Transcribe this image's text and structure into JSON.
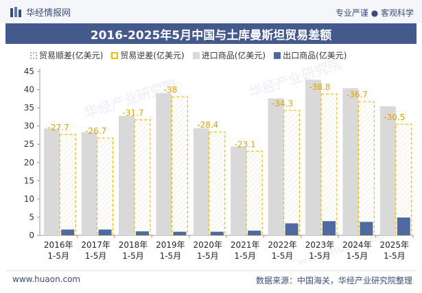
{
  "header": {
    "brand_name": "华经情报网",
    "tagline": "专业严谨 ● 客观科学"
  },
  "footer": {
    "website": "www.huaon.com",
    "source": "数据来源：中国海关，华经产业研究院整理"
  },
  "watermarks": [
    "华经产业研究院",
    "华经产业研究院",
    "www.huaon.com"
  ],
  "colors": {
    "title_band": "#44598c",
    "import": "#d9d9d9",
    "export": "#4f6aa0",
    "deficit_border": "#f5b700",
    "surplus_border": "#9aa9cc"
  },
  "chart_data": {
    "type": "bar",
    "title": "2016-2025年5月中国与土库曼斯坦贸易差额",
    "legend_position": "top",
    "categories": [
      "2016年\n1-5月",
      "2017年\n1-5月",
      "2018年\n1-5月",
      "2019年\n1-5月",
      "2020年\n1-5月",
      "2021年\n1-5月",
      "2022年\n1-5月",
      "2023年\n1-5月",
      "2024年\n1-5月",
      "2025年\n1-5月"
    ],
    "ylim": [
      0,
      45
    ],
    "yticks": [
      0,
      5,
      10,
      15,
      20,
      25,
      30,
      35,
      40,
      45
    ],
    "grid": false,
    "series": [
      {
        "name": "贸易顺差(亿美元)",
        "values": [
          null,
          null,
          null,
          null,
          null,
          null,
          null,
          null,
          null,
          null
        ]
      },
      {
        "name": "贸易逆差(亿美元)",
        "values": [
          -27.7,
          -26.7,
          -31.7,
          -38,
          -28.4,
          -23.1,
          -34.3,
          -38.8,
          -36.7,
          -30.5
        ]
      },
      {
        "name": "进口商品(亿美元)",
        "values": [
          29.3,
          28.3,
          32.8,
          39.0,
          29.4,
          24.4,
          37.6,
          42.7,
          40.4,
          35.4
        ]
      },
      {
        "name": "出口商品(亿美元)",
        "values": [
          1.6,
          1.6,
          1.1,
          1.0,
          1.0,
          1.3,
          3.3,
          3.9,
          3.7,
          4.9
        ]
      }
    ],
    "data_labels": [
      "-27.7",
      "-26.7",
      "-31.7",
      "-38",
      "-28.4",
      "-23.1",
      "-34.3",
      "-38.8",
      "-36.7",
      "-30.5"
    ]
  }
}
